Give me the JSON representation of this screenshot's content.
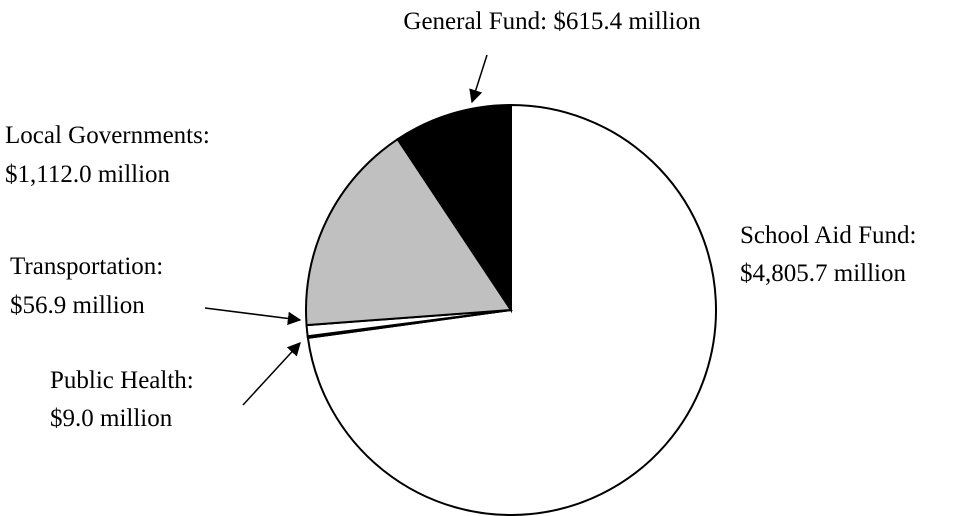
{
  "chart_data": {
    "type": "pie",
    "categories": [
      "School Aid Fund:",
      "Public Health:",
      "Transportation:",
      "Local Governments:",
      "General Fund:"
    ],
    "values": [
      4805.7,
      9.0,
      56.9,
      1112.0,
      615.4
    ],
    "value_labels": [
      "$4,805.7 million",
      "$9.0 million",
      "$56.9 million",
      "$1,112.0 million",
      "$615.4 million"
    ],
    "colors": [
      "#ffffff",
      "#000000",
      "#ffffff",
      "#c0c0c0",
      "#000000"
    ]
  }
}
